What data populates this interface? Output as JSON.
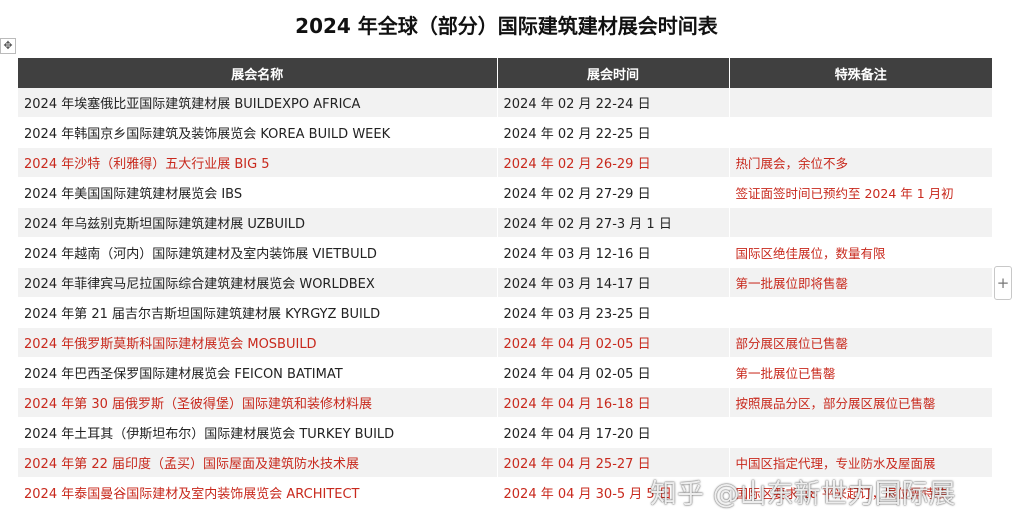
{
  "title": "2024 年全球（部分）国际建筑建材展会时间表",
  "controls": {
    "move_glyph": "✥",
    "add_glyph": "+"
  },
  "table": {
    "headers": [
      "展会名称",
      "展会时间",
      "特殊备注"
    ],
    "rows": [
      {
        "name": "2024 年埃塞俄比亚国际建筑建材展 BUILDEXPO AFRICA",
        "date": "2024 年 02 月 22-24 日",
        "note": "",
        "highlight": false
      },
      {
        "name": "2024 年韩国京乡国际建筑及装饰展览会 KOREA BUILD WEEK",
        "date": "2024 年 02 月 22-25 日",
        "note": "",
        "highlight": false
      },
      {
        "name": "2024 年沙特（利雅得）五大行业展 BIG 5",
        "date": "2024 年 02 月 26-29 日",
        "note": "热门展会，余位不多",
        "highlight": true
      },
      {
        "name": "2024 年美国国际建筑建材展览会 IBS",
        "date": "2024 年 02 月 27-29 日",
        "note": "签证面签时间已预约至 2024 年 1 月初",
        "highlight": true,
        "name_black": true
      },
      {
        "name": "2024 年乌兹别克斯坦国际建筑建材展 UZBUILD",
        "date": "2024 年 02 月 27-3 月 1 日",
        "note": "",
        "highlight": false
      },
      {
        "name": "2024 年越南（河内）国际建筑建材及室内装饰展 VIETBULD",
        "date": "2024 年 03 月 12-16 日",
        "note": "国际区绝佳展位，数量有限",
        "highlight": true,
        "name_black": true
      },
      {
        "name": "2024 年菲律宾马尼拉国际综合建筑建材展览会 WORLDBEX",
        "date": "2024 年 03 月 14-17 日",
        "note": "第一批展位即将售罄",
        "highlight": true,
        "name_black": true
      },
      {
        "name": "2024 年第 21 届吉尔吉斯坦国际建筑建材展 KYRGYZ BUILD",
        "date": "2024 年 03 月 23-25 日",
        "note": "",
        "highlight": false
      },
      {
        "name": "2024 年俄罗斯莫斯科国际建材展览会 MOSBUILD",
        "date": "2024 年 04 月 02-05 日",
        "note": "部分展区展位已售罄",
        "highlight": true
      },
      {
        "name": "2024 年巴西圣保罗国际建材展览会 FEICON BATIMAT",
        "date": "2024 年 04 月 02-05 日",
        "note": "第一批展位已售罄",
        "highlight": true,
        "name_black": true
      },
      {
        "name": "2024 年第 30 届俄罗斯（圣彼得堡）国际建筑和装修材料展",
        "date": "2024 年 04 月 16-18 日",
        "note": "按照展品分区，部分展区展位已售罄",
        "highlight": true
      },
      {
        "name": "2024 年土耳其（伊斯坦布尔）国际建材展览会 TURKEY BUILD",
        "date": "2024 年 04 月 17-20 日",
        "note": "",
        "highlight": false
      },
      {
        "name": "2024 年第 22 届印度（孟买）国际屋面及建筑防水技术展",
        "date": "2024 年 04 月 25-27 日",
        "note": "中国区指定代理，专业防水及屋面展",
        "highlight": true
      },
      {
        "name": "2024 年泰国曼谷国际建材及室内装饰展览会 ARCHITECT",
        "date": "2024 年 04 月 30-5 月 5 日",
        "note": "国际区要求 18 平米起订，展位需特装",
        "highlight": true
      }
    ]
  },
  "watermark": "知乎 @山东新世力国际展"
}
